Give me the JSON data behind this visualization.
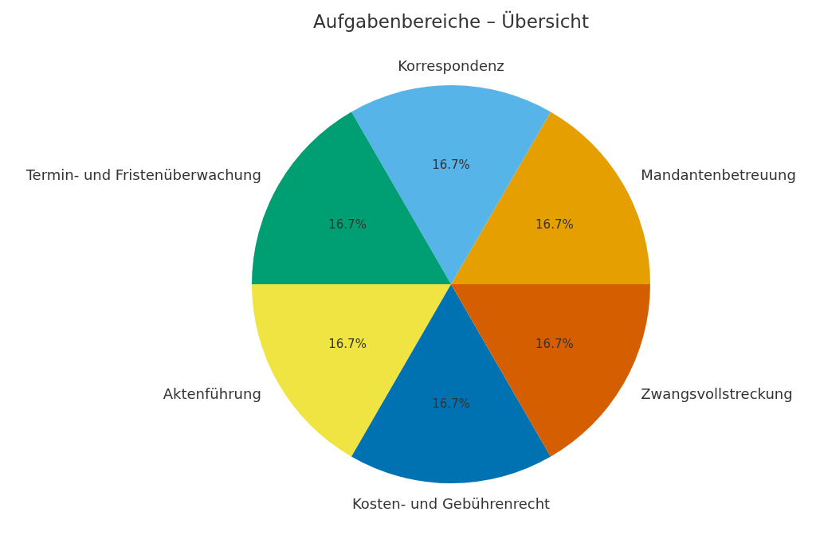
{
  "chart_data": {
    "type": "pie",
    "title": "Aufgabenbereiche – Übersicht",
    "categories": [
      "Mandantenbetreuung",
      "Korrespondenz",
      "Termin- und Fristenüberwachung",
      "Aktenführung",
      "Kosten- und Gebührenrecht",
      "Zwangsvollstreckung"
    ],
    "values": [
      16.7,
      16.7,
      16.7,
      16.7,
      16.7,
      16.7
    ],
    "colors": [
      "#e69f00",
      "#56b4e9",
      "#009e73",
      "#f0e442",
      "#0072b2",
      "#d55e00"
    ],
    "value_labels": [
      "16.7%",
      "16.7%",
      "16.7%",
      "16.7%",
      "16.7%",
      "16.7%"
    ]
  }
}
